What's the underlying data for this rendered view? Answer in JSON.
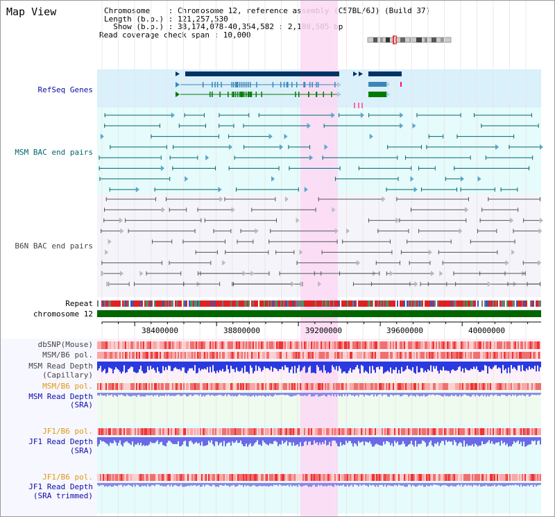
{
  "title": "Map View",
  "info": {
    "chromosome": "Chromosome    : Chromosome 12, reference assembly (C57BL/6J) (Build 37)",
    "length": "Length (b.p.) : 121,257,530",
    "show": "  Show (b.p.) : 38,174,078-40,354,582 : 2,180,505 bp",
    "span": "Read coverage check span : 10,000"
  },
  "tracks": {
    "refseq": "RefSeq Genes",
    "msm_bac": "MSM BAC end pairs",
    "b6n_bac": "B6N BAC end pairs",
    "repeat": "Repeat",
    "chromosome": "chromosome 12",
    "dbsnp": "dbSNP(Mouse)",
    "msm_b6_pol": "MSM/B6 pol.",
    "msm_depth_cap_1": "MSM Read Depth",
    "msm_depth_cap_2": "(Capillary)",
    "msm_b6_pol2": "MSM/B6 pol.",
    "msm_depth_sra_1": "MSM Read Depth",
    "msm_depth_sra_2": "(SRA)",
    "jf1_b6_pol": "JF1/B6 pol.",
    "jf1_depth_1": "JF1 Read Depth",
    "jf1_depth_2": "(SRA)",
    "jf1_b6_pol2": "JF1/B6 pol.",
    "jf1_trim_1": "JF1 Read Depth",
    "jf1_trim_2": "(SRA trimmed)"
  },
  "axis": {
    "ticks": [
      "38400000",
      "38800000",
      "39200000",
      "39600000",
      "40000000"
    ]
  },
  "colors": {
    "refseq_bg": "#daf0fb",
    "bac_bg": "#e6fbfb",
    "b6n_bg": "#f4f4fa",
    "highlight": "#fbd8f3",
    "chromosome_bar": "#006600",
    "gene_dark": "#003366"
  }
}
